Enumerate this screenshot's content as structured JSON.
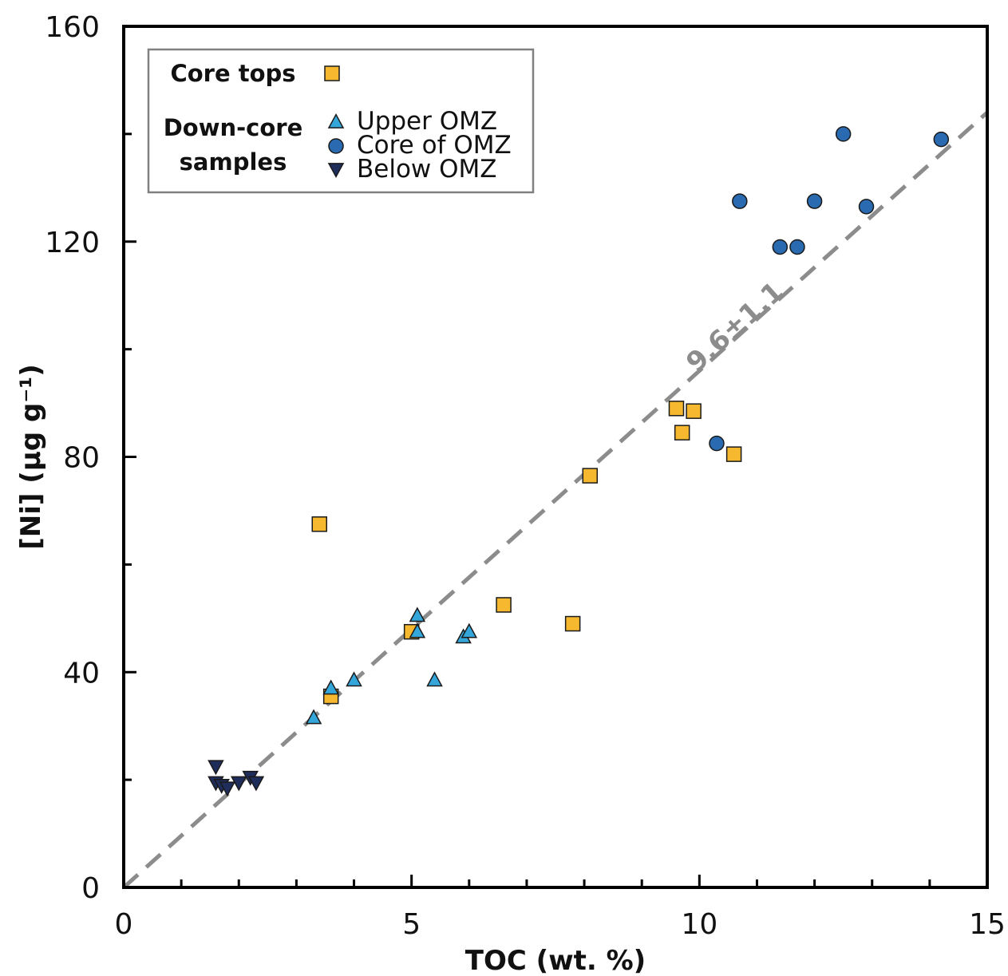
{
  "chart_data": {
    "type": "scatter",
    "xlabel": "TOC (wt. %)",
    "ylabel": "[Ni] (µg g⁻¹)",
    "xlim": [
      0,
      15
    ],
    "ylim": [
      0,
      160
    ],
    "x_ticks": [
      0,
      5,
      10,
      15
    ],
    "y_ticks": [
      0,
      40,
      80,
      120,
      160
    ],
    "x_minor_step": 1,
    "y_minor_step": 20,
    "grid": false,
    "legend_placement": "top-left",
    "legend": {
      "core_tops_label": "Core tops",
      "down_core_label_line1": "Down-core",
      "down_core_label_line2": "samples"
    },
    "trendline": {
      "label": "9.6±1.1",
      "slope": 9.6,
      "intercept": 0,
      "style": "dashed",
      "color": "#8c8c8c"
    },
    "series": [
      {
        "name": "Core tops",
        "marker": "square",
        "color": "#f5b82e",
        "points": [
          [
            3.4,
            67.5
          ],
          [
            3.6,
            35.5
          ],
          [
            5.0,
            47.5
          ],
          [
            6.6,
            52.5
          ],
          [
            7.8,
            49.0
          ],
          [
            8.1,
            76.5
          ],
          [
            9.6,
            89.0
          ],
          [
            9.7,
            84.5
          ],
          [
            9.9,
            88.5
          ],
          [
            10.6,
            80.5
          ]
        ]
      },
      {
        "name": "Upper OMZ",
        "marker": "triangle-up",
        "color": "#35a6d9",
        "points": [
          [
            3.3,
            31.5
          ],
          [
            3.6,
            37.0
          ],
          [
            4.0,
            38.5
          ],
          [
            5.1,
            50.5
          ],
          [
            5.1,
            47.5
          ],
          [
            5.4,
            38.5
          ],
          [
            5.9,
            46.5
          ],
          [
            6.0,
            47.5
          ]
        ]
      },
      {
        "name": "Core of OMZ",
        "marker": "circle",
        "color": "#2a6ab0",
        "points": [
          [
            10.3,
            82.5
          ],
          [
            10.7,
            127.5
          ],
          [
            11.4,
            119.0
          ],
          [
            11.7,
            119.0
          ],
          [
            12.0,
            127.5
          ],
          [
            12.5,
            140.0
          ],
          [
            12.9,
            126.5
          ],
          [
            14.2,
            139.0
          ]
        ]
      },
      {
        "name": "Below OMZ",
        "marker": "triangle-down",
        "color": "#1f2d5a",
        "points": [
          [
            1.6,
            22.5
          ],
          [
            1.6,
            19.5
          ],
          [
            1.7,
            19.0
          ],
          [
            1.8,
            18.5
          ],
          [
            2.0,
            19.5
          ],
          [
            2.2,
            20.5
          ],
          [
            2.3,
            19.5
          ]
        ]
      }
    ]
  }
}
